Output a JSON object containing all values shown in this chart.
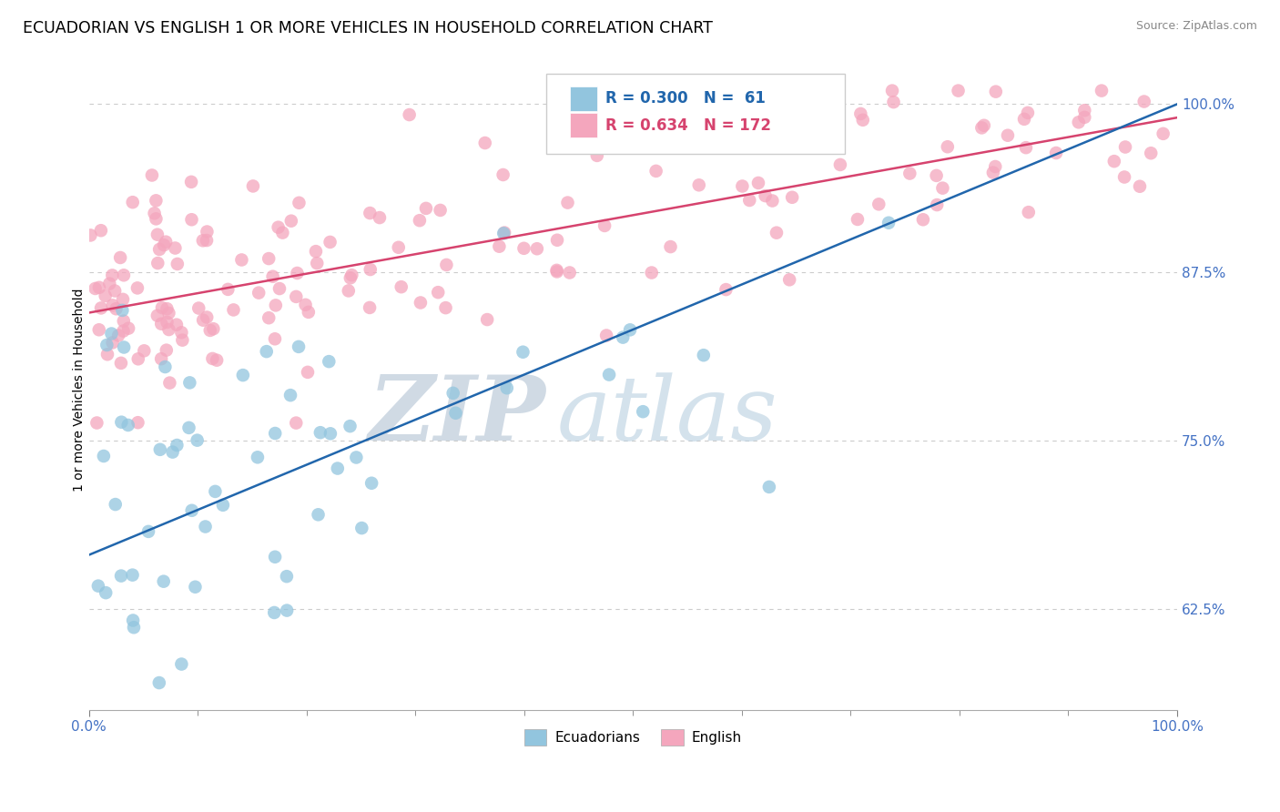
{
  "title": "ECUADORIAN VS ENGLISH 1 OR MORE VEHICLES IN HOUSEHOLD CORRELATION CHART",
  "source_text": "Source: ZipAtlas.com",
  "ylabel": "1 or more Vehicles in Household",
  "legend_label1": "Ecuadorians",
  "legend_label2": "English",
  "R1": 0.3,
  "N1": 61,
  "R2": 0.634,
  "N2": 172,
  "color_blue": "#92c5de",
  "color_pink": "#f4a6bd",
  "color_blue_line": "#2166ac",
  "color_pink_line": "#d6436e",
  "color_axis_labels": "#4472c4",
  "watermark_zip": "ZIP",
  "watermark_atlas": "atlas",
  "blue_line_x0": 0.0,
  "blue_line_y0": 0.665,
  "blue_line_x1": 1.0,
  "blue_line_y1": 1.0,
  "pink_line_x0": 0.0,
  "pink_line_y0": 0.845,
  "pink_line_x1": 1.0,
  "pink_line_y1": 0.99,
  "xlim": [
    0.0,
    1.0
  ],
  "ylim": [
    0.55,
    1.025
  ],
  "yticks": [
    0.625,
    0.75,
    0.875,
    1.0
  ],
  "ytick_labels": [
    "62.5%",
    "75.0%",
    "87.5%",
    "100.0%"
  ],
  "xtick_major": [
    0.0,
    1.0
  ],
  "xtick_major_labels": [
    "0.0%",
    "100.0%"
  ],
  "xtick_minor": [
    0.1,
    0.2,
    0.3,
    0.4,
    0.5,
    0.6,
    0.7,
    0.8,
    0.9
  ]
}
